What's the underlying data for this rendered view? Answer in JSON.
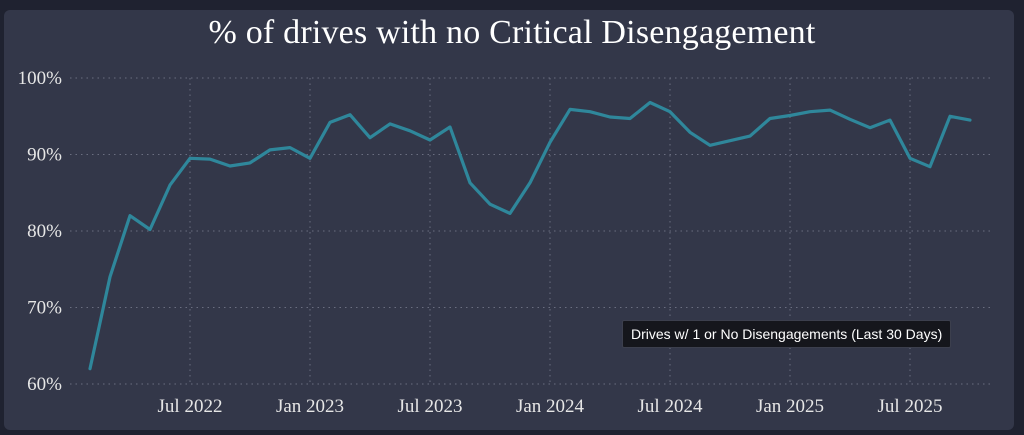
{
  "chart_data": {
    "type": "line",
    "title": "% of drives with no Critical Disengagement",
    "xlabel": "",
    "ylabel": "",
    "ylim": [
      60,
      100
    ],
    "y_ticks": [
      "100%",
      "90%",
      "80%",
      "70%",
      "60%"
    ],
    "y_tick_values": [
      100,
      90,
      80,
      70,
      60
    ],
    "x_tick_labels": [
      "Jul 2022",
      "Jan 2023",
      "Jul 2023",
      "Jan 2024",
      "Jul 2024",
      "Jan 2025",
      "Jul 2025"
    ],
    "x_tick_dates": [
      "2022-07",
      "2023-01",
      "2023-07",
      "2024-01",
      "2024-07",
      "2025-01",
      "2025-07"
    ],
    "grid": true,
    "series": [
      {
        "color": "#2f879b",
        "x": [
          "2022-02",
          "2022-03",
          "2022-04",
          "2022-05",
          "2022-06",
          "2022-07",
          "2022-08",
          "2022-09",
          "2022-10",
          "2022-11",
          "2022-12",
          "2023-01",
          "2023-02",
          "2023-03",
          "2023-04",
          "2023-05",
          "2023-06",
          "2023-07",
          "2023-08",
          "2023-09",
          "2023-10",
          "2023-11",
          "2023-12",
          "2024-01",
          "2024-02",
          "2024-03",
          "2024-04",
          "2024-05",
          "2024-06",
          "2024-07",
          "2024-08",
          "2024-09",
          "2024-10",
          "2024-11",
          "2024-12",
          "2025-01",
          "2025-02",
          "2025-03",
          "2025-04",
          "2025-05",
          "2025-06",
          "2025-07",
          "2025-08",
          "2025-09",
          "2025-10"
        ],
        "values": [
          62,
          74,
          82,
          80.2,
          86,
          89.5,
          89.4,
          88.5,
          88.9,
          90.6,
          90.9,
          89.5,
          94.2,
          95.2,
          92.2,
          94,
          93.1,
          91.9,
          93.6,
          86.3,
          83.5,
          82.3,
          86.3,
          91.6,
          95.9,
          95.6,
          94.9,
          94.7,
          96.8,
          95.6,
          92.9,
          91.2,
          91.8,
          92.4,
          94.7,
          95.1,
          95.6,
          95.8,
          94.6,
          93.5,
          94.5,
          89.5,
          88.4,
          95,
          94.5
        ]
      }
    ]
  },
  "tooltip": {
    "text": "Drives w/ 1 or No Disengagements (Last 30 Days)"
  }
}
